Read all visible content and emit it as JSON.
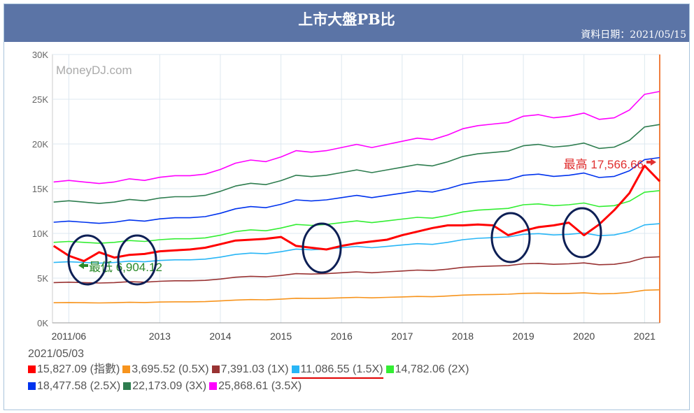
{
  "header": {
    "title": "上市大盤PB比",
    "date": "資料日期：2021/05/15"
  },
  "chart_data": {
    "type": "line",
    "title": "上市大盤PB比",
    "watermark": "MoneyDJ.com",
    "x_start": 2011.25,
    "x_step": 0.25,
    "xlim": [
      2011.23,
      2021.25
    ],
    "ylim": [
      0,
      30000
    ],
    "y_ticks": [
      "0K",
      "5K",
      "10K",
      "15K",
      "20K",
      "25K",
      "30K"
    ],
    "x_ticks": [
      {
        "v": 2011.5,
        "label": "2011/06"
      },
      {
        "v": 2013,
        "label": "2013"
      },
      {
        "v": 2014,
        "label": "2014"
      },
      {
        "v": 2015,
        "label": "2015"
      },
      {
        "v": 2016,
        "label": "2016"
      },
      {
        "v": 2017,
        "label": "2017"
      },
      {
        "v": 2018,
        "label": "2018"
      },
      {
        "v": 2019,
        "label": "2019"
      },
      {
        "v": 2020,
        "label": "2020"
      },
      {
        "v": 2021,
        "label": "2021"
      }
    ],
    "bvps_1x": [
      4500,
      4550,
      4500,
      4450,
      4500,
      4600,
      4550,
      4650,
      4700,
      4700,
      4750,
      4900,
      5100,
      5200,
      5150,
      5300,
      5500,
      5450,
      5500,
      5600,
      5700,
      5600,
      5700,
      5800,
      5900,
      5850,
      6000,
      6200,
      6300,
      6350,
      6400,
      6600,
      6650,
      6550,
      6600,
      6700,
      6500,
      6550,
      6800,
      7300,
      7391.03
    ],
    "index": [
      8600,
      7500,
      6904.12,
      7900,
      7300,
      7600,
      7700,
      8000,
      8100,
      8200,
      8400,
      8800,
      9200,
      9300,
      9400,
      9600,
      8600,
      8400,
      8200,
      8600,
      8900,
      9100,
      9300,
      9800,
      10200,
      10600,
      10900,
      10900,
      11000,
      10900,
      9800,
      10300,
      10700,
      10900,
      11200,
      9800,
      11000,
      12600,
      14500,
      17566.66,
      15827.09
    ],
    "series": [
      {
        "name": "指數",
        "mult": 0,
        "color": "#ff0000",
        "legend": "15,827.09 (指數)"
      },
      {
        "name": "0.5X",
        "mult": 0.5,
        "color": "#f7941d",
        "legend": "3,695.52 (0.5X)"
      },
      {
        "name": "1X",
        "mult": 1,
        "color": "#993333",
        "legend": "7,391.03 (1X)"
      },
      {
        "name": "1.5X",
        "mult": 1.5,
        "color": "#29b6f6",
        "legend": "11,086.55 (1.5X)"
      },
      {
        "name": "2X",
        "mult": 2,
        "color": "#33ee33",
        "legend": "14,782.06 (2X)"
      },
      {
        "name": "2.5X",
        "mult": 2.5,
        "color": "#0033ee",
        "legend": "18,477.58 (2.5X)"
      },
      {
        "name": "3X",
        "mult": 3,
        "color": "#2e7d4f",
        "legend": "22,173.09 (3X)"
      },
      {
        "name": "3.5X",
        "mult": 3.5,
        "color": "#ff00ff",
        "legend": "25,868.61 (3.5X)"
      }
    ],
    "annotations": {
      "low": "最低 6,904.12",
      "high": "最高 17,566.66"
    },
    "legend_date": "2021/05/03"
  }
}
